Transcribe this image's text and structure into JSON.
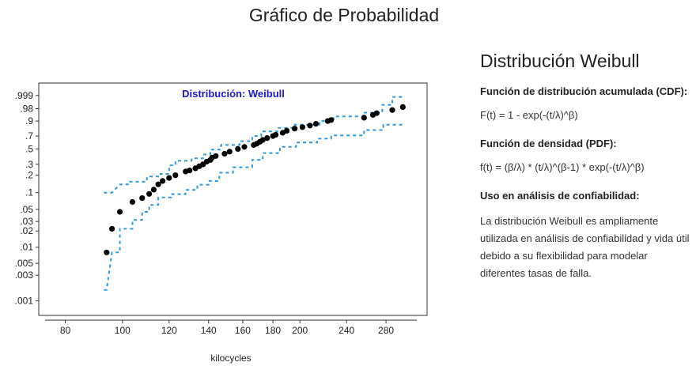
{
  "page": {
    "title": "Gráfico de Probabilidad"
  },
  "side_panel": {
    "title": "Distribución Weibull",
    "cdf_heading": "Función de distribución acumulada (CDF):",
    "cdf_formula": "F(t) = 1 - exp(-(t/λ)^β)",
    "pdf_heading": "Función de densidad (PDF):",
    "pdf_formula": "f(t) = (β/λ) * (t/λ)^(β-1) * exp(-(t/λ)^β)",
    "use_heading": "Uso en análisis de confiabilidad:",
    "use_text": "La distribución Weibull es ampliamente utilizada en análisis de confiabilidad y vida útil debido a su flexibilidad para modelar diferentes tasas de falla."
  },
  "chart_data": {
    "type": "scatter",
    "title": "Distribución: Weibull",
    "xlabel": "kilocycles",
    "ylabel": "",
    "x_scale": "log",
    "y_scale": "weibull-probability",
    "xlim": [
      76,
      310
    ],
    "x_ticks": [
      80,
      100,
      120,
      140,
      160,
      180,
      200,
      240,
      280
    ],
    "y_ticks": [
      0.001,
      0.003,
      0.005,
      0.01,
      0.02,
      0.03,
      0.05,
      0.1,
      0.2,
      0.3,
      0.5,
      0.7,
      0.9,
      0.98,
      0.999
    ],
    "y_tick_labels": [
      ".001",
      ".003",
      ".005",
      ".01",
      ".02",
      ".03",
      ".05",
      ".1",
      ".2",
      ".3",
      ".5",
      ".7",
      ".9",
      ".98",
      ".999"
    ],
    "ylim": [
      0.0007,
      0.9995
    ],
    "colors": {
      "points": "#000000",
      "bounds": "#3399dd",
      "title": "#1a1acc"
    },
    "points": [
      [
        94,
        0.008
      ],
      [
        96,
        0.022
      ],
      [
        99,
        0.045
      ],
      [
        104,
        0.068
      ],
      [
        108,
        0.08
      ],
      [
        111,
        0.095
      ],
      [
        113,
        0.113
      ],
      [
        115,
        0.14
      ],
      [
        117,
        0.16
      ],
      [
        120,
        0.18
      ],
      [
        123,
        0.2
      ],
      [
        128,
        0.23
      ],
      [
        130,
        0.24
      ],
      [
        133,
        0.26
      ],
      [
        135,
        0.28
      ],
      [
        137,
        0.3
      ],
      [
        139,
        0.33
      ],
      [
        141,
        0.35
      ],
      [
        142,
        0.38
      ],
      [
        144,
        0.4
      ],
      [
        149,
        0.43
      ],
      [
        152,
        0.46
      ],
      [
        157,
        0.5
      ],
      [
        161,
        0.53
      ],
      [
        167,
        0.56
      ],
      [
        169,
        0.58
      ],
      [
        171,
        0.61
      ],
      [
        173,
        0.64
      ],
      [
        176,
        0.67
      ],
      [
        180,
        0.7
      ],
      [
        182,
        0.72
      ],
      [
        187,
        0.75
      ],
      [
        190,
        0.78
      ],
      [
        196,
        0.81
      ],
      [
        202,
        0.83
      ],
      [
        208,
        0.85
      ],
      [
        213,
        0.87
      ],
      [
        223,
        0.9
      ],
      [
        226,
        0.91
      ],
      [
        257,
        0.93
      ],
      [
        266,
        0.95
      ],
      [
        270,
        0.96
      ],
      [
        287,
        0.975
      ],
      [
        299,
        0.985
      ]
    ],
    "upper_bound": [
      [
        93,
        0.1
      ],
      [
        96,
        0.1
      ],
      [
        99,
        0.14
      ],
      [
        103,
        0.14
      ],
      [
        103,
        0.155
      ],
      [
        110,
        0.155
      ],
      [
        110,
        0.19
      ],
      [
        116,
        0.19
      ],
      [
        116,
        0.21
      ],
      [
        120,
        0.21
      ],
      [
        120,
        0.29
      ],
      [
        123,
        0.29
      ],
      [
        123,
        0.34
      ],
      [
        131,
        0.34
      ],
      [
        131,
        0.37
      ],
      [
        137,
        0.37
      ],
      [
        137,
        0.42
      ],
      [
        141,
        0.42
      ],
      [
        141,
        0.49
      ],
      [
        147,
        0.49
      ],
      [
        147,
        0.56
      ],
      [
        158,
        0.56
      ],
      [
        158,
        0.62
      ],
      [
        166,
        0.62
      ],
      [
        166,
        0.7
      ],
      [
        172,
        0.7
      ],
      [
        172,
        0.77
      ],
      [
        184,
        0.77
      ],
      [
        184,
        0.82
      ],
      [
        196,
        0.82
      ],
      [
        196,
        0.86
      ],
      [
        216,
        0.86
      ],
      [
        216,
        0.9
      ],
      [
        228,
        0.9
      ],
      [
        228,
        0.94
      ],
      [
        256,
        0.94
      ],
      [
        256,
        0.963
      ],
      [
        276,
        0.963
      ],
      [
        276,
        0.99
      ],
      [
        287,
        0.99
      ],
      [
        287,
        0.9985
      ],
      [
        300,
        0.9985
      ]
    ],
    "lower_bound": [
      [
        93,
        0.0016
      ],
      [
        94,
        0.0016
      ],
      [
        96,
        0.008
      ],
      [
        99,
        0.008
      ],
      [
        99,
        0.022
      ],
      [
        104,
        0.022
      ],
      [
        104,
        0.032
      ],
      [
        108,
        0.032
      ],
      [
        108,
        0.045
      ],
      [
        111,
        0.045
      ],
      [
        111,
        0.06
      ],
      [
        115,
        0.06
      ],
      [
        115,
        0.082
      ],
      [
        121,
        0.082
      ],
      [
        121,
        0.094
      ],
      [
        128,
        0.094
      ],
      [
        128,
        0.112
      ],
      [
        134,
        0.112
      ],
      [
        134,
        0.138
      ],
      [
        140,
        0.138
      ],
      [
        140,
        0.16
      ],
      [
        146,
        0.16
      ],
      [
        146,
        0.22
      ],
      [
        154,
        0.22
      ],
      [
        154,
        0.27
      ],
      [
        166,
        0.27
      ],
      [
        166,
        0.35
      ],
      [
        173,
        0.35
      ],
      [
        173,
        0.44
      ],
      [
        185,
        0.44
      ],
      [
        185,
        0.53
      ],
      [
        197,
        0.53
      ],
      [
        197,
        0.6
      ],
      [
        214,
        0.6
      ],
      [
        214,
        0.66
      ],
      [
        226,
        0.66
      ],
      [
        226,
        0.71
      ],
      [
        257,
        0.71
      ],
      [
        257,
        0.79
      ],
      [
        277,
        0.79
      ],
      [
        277,
        0.86
      ],
      [
        300,
        0.86
      ]
    ]
  }
}
